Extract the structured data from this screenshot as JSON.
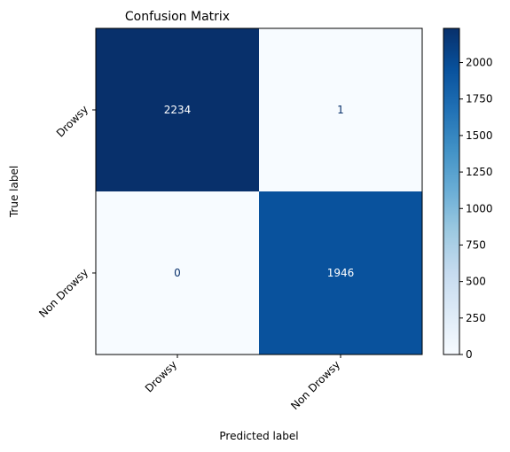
{
  "chart_data": {
    "type": "heatmap",
    "title": "Confusion Matrix",
    "xlabel": "Predicted label",
    "ylabel": "True label",
    "x_categories": [
      "Drowsy",
      "Non Drowsy"
    ],
    "y_categories": [
      "Drowsy",
      "Non Drowsy"
    ],
    "values": [
      [
        2234,
        1
      ],
      [
        0,
        1946
      ]
    ],
    "colormap": "Blues",
    "color_min": "#f7fbff",
    "color_max": "#08306b",
    "value_range": [
      0,
      2234
    ],
    "colorbar_ticks": [
      0,
      250,
      500,
      750,
      1000,
      1250,
      1500,
      1750,
      2000
    ],
    "grid": false,
    "colorbar": "right"
  }
}
